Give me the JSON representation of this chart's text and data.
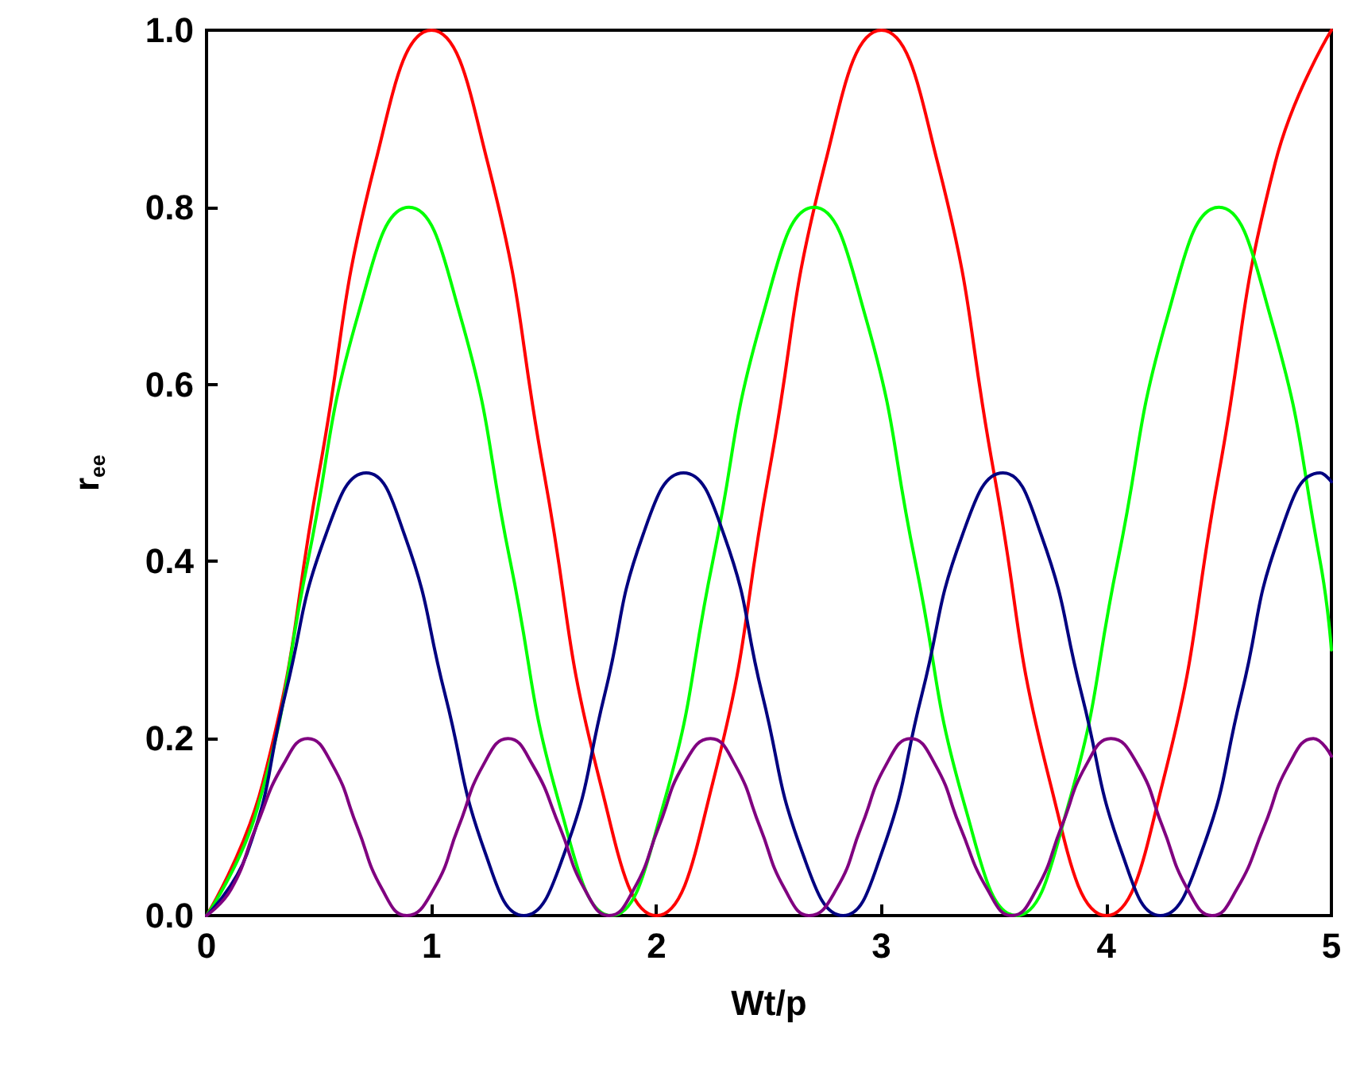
{
  "chart_data": {
    "type": "line",
    "xlabel": "Wt/p",
    "ylabel": "r$_{ee}$",
    "xlim": [
      0,
      5
    ],
    "xticks": [
      0,
      1,
      2,
      3,
      4,
      5
    ],
    "ylim": [
      0,
      1
    ],
    "yticks": [
      {
        "value": 0,
        "label": "0.0"
      },
      0.2,
      0.4,
      0.6,
      0.8,
      {
        "value": 1,
        "label": "1.0"
      }
    ],
    "grid": false,
    "marker": "none",
    "line_style": "solid",
    "series": [
      {
        "color": "#ff0000",
        "x": [
          0,
          0.25,
          0.5,
          0.75,
          1,
          1.25,
          1.5,
          1.75,
          2,
          2.25,
          2.5,
          2.75,
          3,
          3.25,
          3.5,
          3.75,
          4,
          4.25,
          4.5,
          4.75,
          5
        ],
        "values": [
          0,
          0.15,
          0.5,
          0.85,
          1,
          0.85,
          0.5,
          0.15,
          0,
          0.15,
          0.5,
          0.85,
          1,
          0.85,
          0.5,
          0.15,
          0,
          0.15,
          0.5,
          0.85,
          1
        ]
      },
      {
        "color": "#00ff00",
        "x": [
          0,
          0.225,
          0.45,
          0.675,
          0.9,
          1.125,
          1.35,
          1.575,
          1.8,
          2.025,
          2.25,
          2.475,
          2.7,
          2.925,
          3.15,
          3.375,
          3.6,
          3.825,
          4.05,
          4.275,
          4.5,
          4.725,
          4.95,
          5
        ],
        "values": [
          0,
          0.12,
          0.4,
          0.68,
          0.8,
          0.68,
          0.4,
          0.12,
          0,
          0.12,
          0.4,
          0.68,
          0.8,
          0.68,
          0.4,
          0.12,
          0,
          0.12,
          0.4,
          0.68,
          0.8,
          0.68,
          0.4,
          0.3
        ]
      },
      {
        "color": "#000080",
        "x": [
          0,
          0.18,
          0.35,
          0.53,
          0.71,
          0.88,
          1.06,
          1.24,
          1.41,
          1.59,
          1.77,
          1.94,
          2.12,
          2.3,
          2.47,
          2.65,
          2.83,
          3,
          3.18,
          3.36,
          3.54,
          3.71,
          3.89,
          4.07,
          4.24,
          4.42,
          4.6,
          4.77,
          4.95,
          5
        ],
        "values": [
          0,
          0.07,
          0.25,
          0.43,
          0.5,
          0.43,
          0.25,
          0.07,
          0,
          0.07,
          0.25,
          0.43,
          0.5,
          0.43,
          0.25,
          0.07,
          0,
          0.07,
          0.25,
          0.43,
          0.5,
          0.43,
          0.25,
          0.07,
          0,
          0.07,
          0.25,
          0.43,
          0.5,
          0.49
        ]
      },
      {
        "color": "#800080",
        "x": [
          0,
          0.11,
          0.22,
          0.34,
          0.45,
          0.56,
          0.67,
          0.78,
          0.89,
          1.01,
          1.12,
          1.23,
          1.34,
          1.45,
          1.57,
          1.68,
          1.79,
          1.9,
          2.01,
          2.12,
          2.24,
          2.35,
          2.46,
          2.57,
          2.68,
          2.8,
          2.91,
          3.02,
          3.13,
          3.24,
          3.35,
          3.47,
          3.58,
          3.69,
          3.8,
          3.91,
          4.02,
          4.14,
          4.25,
          4.36,
          4.47,
          4.58,
          4.7,
          4.81,
          4.92,
          5
        ],
        "values": [
          0,
          0.03,
          0.1,
          0.17,
          0.2,
          0.17,
          0.1,
          0.03,
          0,
          0.03,
          0.1,
          0.17,
          0.2,
          0.17,
          0.1,
          0.03,
          0,
          0.03,
          0.1,
          0.17,
          0.2,
          0.17,
          0.1,
          0.03,
          0,
          0.03,
          0.1,
          0.17,
          0.2,
          0.17,
          0.1,
          0.03,
          0,
          0.03,
          0.1,
          0.17,
          0.2,
          0.17,
          0.1,
          0.03,
          0,
          0.03,
          0.1,
          0.17,
          0.2,
          0.18
        ]
      }
    ]
  }
}
